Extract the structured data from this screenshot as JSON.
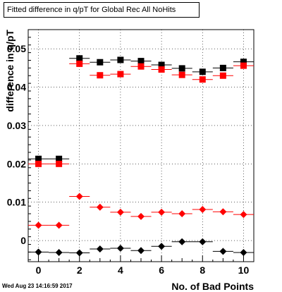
{
  "chart_data": {
    "type": "scatter",
    "title": "Fitted difference in q/pT for Global Rec All NoHits",
    "xlabel": "No. of Bad Points",
    "ylabel": "difference in q/pT",
    "timestamp": "Wed Aug 23 14:16:59 2017",
    "xlim": [
      -0.5,
      10.5
    ],
    "ylim": [
      -0.0055,
      0.055
    ],
    "x_ticks": [
      0,
      2,
      4,
      6,
      8,
      10
    ],
    "y_ticks": [
      0,
      0.01,
      0.02,
      0.03,
      0.04,
      0.05
    ],
    "y_tick_labels": [
      "0",
      "0.01",
      "0.02",
      "0.03",
      "0.04",
      "0.05"
    ],
    "grid": true,
    "series": [
      {
        "marker": "square",
        "color": "#000000",
        "x": [
          0,
          1,
          2,
          3,
          4,
          5,
          6,
          7,
          8,
          9,
          10
        ],
        "y": [
          0.0213,
          0.0213,
          0.0475,
          0.0465,
          0.0471,
          0.0468,
          0.0458,
          0.0449,
          0.044,
          0.045,
          0.0466
        ]
      },
      {
        "marker": "square",
        "color": "#ff0000",
        "x": [
          0,
          1,
          2,
          3,
          4,
          5,
          6,
          7,
          8,
          9,
          10
        ],
        "y": [
          0.02,
          0.02,
          0.0461,
          0.0431,
          0.0434,
          0.0454,
          0.0446,
          0.0432,
          0.042,
          0.043,
          0.0456
        ]
      },
      {
        "marker": "diamond",
        "color": "#ff0000",
        "x": [
          0,
          1,
          2,
          3,
          4,
          5,
          6,
          7,
          8,
          9,
          10
        ],
        "y": [
          0.004,
          0.004,
          0.0115,
          0.0087,
          0.0074,
          0.0063,
          0.0074,
          0.007,
          0.0081,
          0.0075,
          0.0068
        ]
      },
      {
        "marker": "diamond",
        "color": "#000000",
        "x": [
          0,
          1,
          2,
          3,
          4,
          5,
          6,
          7,
          8,
          9,
          10
        ],
        "y": [
          -0.003,
          -0.0031,
          -0.0032,
          -0.0022,
          -0.002,
          -0.0026,
          -0.0015,
          -0.0003,
          -0.0003,
          -0.0028,
          -0.0031
        ]
      }
    ]
  }
}
